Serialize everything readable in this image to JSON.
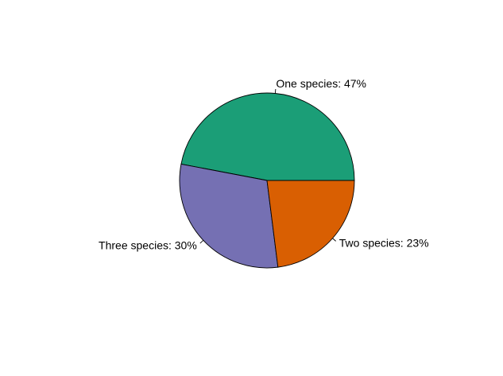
{
  "chart_data": {
    "type": "pie",
    "title": "",
    "slices": [
      {
        "label": "One species: 47%",
        "value": 47,
        "color": "#1b9e77"
      },
      {
        "label": "Three species: 30%",
        "value": 30,
        "color": "#7570b3"
      },
      {
        "label": "Two species: 23%",
        "value": 23,
        "color": "#d95f02"
      }
    ],
    "start_angle_deg": 0,
    "direction": "counterclockwise",
    "legend": "none",
    "grid": false
  }
}
